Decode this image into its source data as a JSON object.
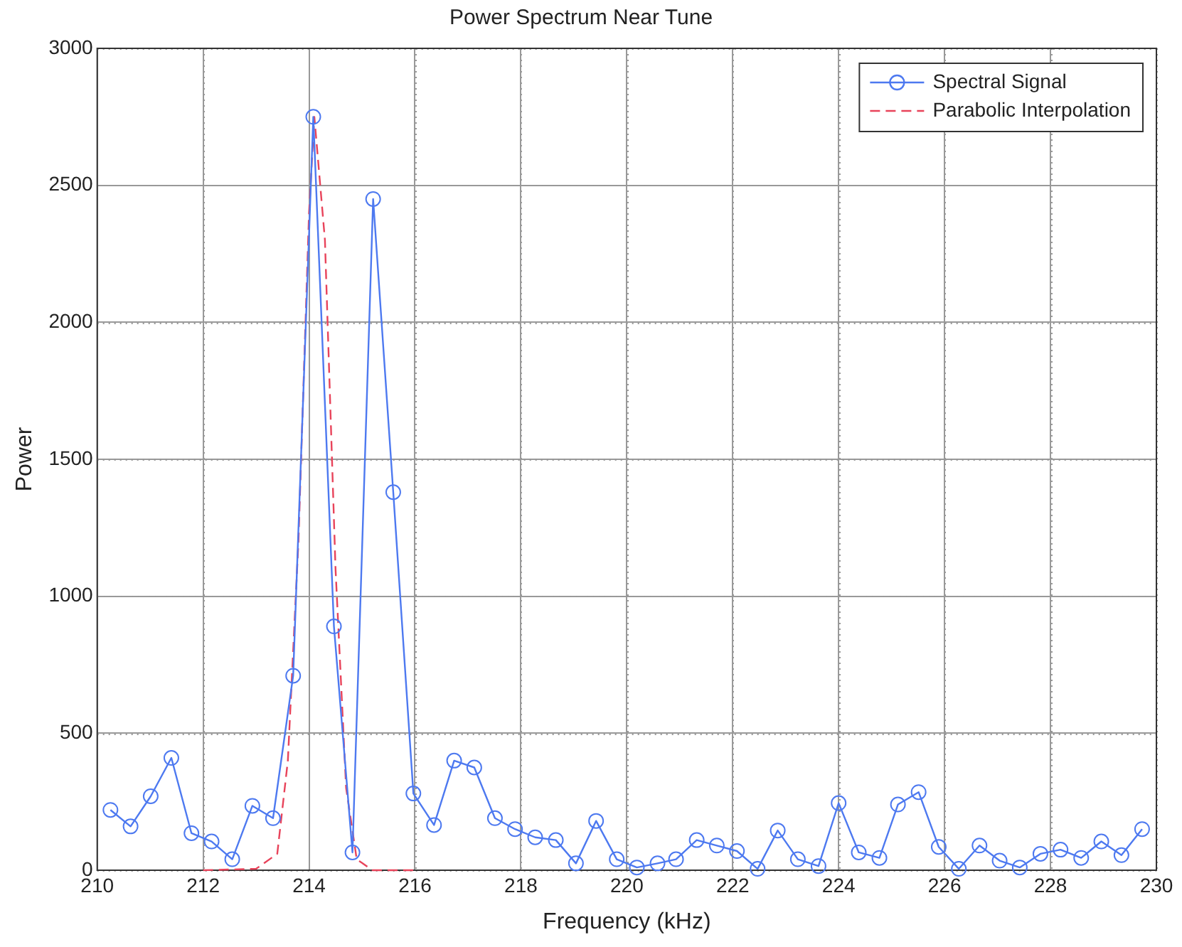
{
  "chart_data": {
    "type": "line",
    "title": "Power Spectrum Near Tune",
    "xlabel": "Frequency (kHz)",
    "ylabel": "Power",
    "xlim": [
      210,
      230
    ],
    "xticks": [
      210,
      212,
      214,
      216,
      218,
      220,
      222,
      224,
      226,
      228,
      230
    ],
    "ylim": [
      0,
      3000
    ],
    "yticks": [
      0,
      500,
      1000,
      1500,
      2000,
      2500,
      3000
    ],
    "grid": true,
    "legend": "top right",
    "series": [
      {
        "name": "Spectral Signal",
        "color": "#4d79f0",
        "marker": "circle",
        "line_style": "solid",
        "x": [
          210.25,
          210.63,
          211.01,
          211.4,
          211.78,
          212.16,
          212.55,
          212.93,
          213.32,
          213.7,
          214.08,
          214.47,
          214.82,
          215.21,
          215.59,
          215.97,
          216.36,
          216.74,
          217.12,
          217.51,
          217.89,
          218.27,
          218.66,
          219.04,
          219.42,
          219.81,
          220.19,
          220.58,
          220.93,
          221.32,
          221.7,
          222.08,
          222.47,
          222.85,
          223.23,
          223.62,
          224.0,
          224.38,
          224.77,
          225.12,
          225.51,
          225.89,
          226.27,
          226.66,
          227.04,
          227.42,
          227.81,
          228.19,
          228.58,
          228.96,
          229.34,
          229.73
        ],
        "values": [
          220,
          160,
          270,
          410,
          135,
          105,
          40,
          235,
          190,
          710,
          2750,
          890,
          65,
          2450,
          1380,
          280,
          165,
          400,
          375,
          190,
          150,
          120,
          110,
          25,
          180,
          40,
          10,
          25,
          40,
          110,
          90,
          70,
          5,
          145,
          40,
          15,
          245,
          65,
          45,
          240,
          285,
          85,
          5,
          90,
          35,
          10,
          60,
          75,
          45,
          105,
          55,
          150
        ]
      },
      {
        "name": "Parabolic Interpolation",
        "color": "#e8435a",
        "marker": "none",
        "line_style": "dashed",
        "x": [
          212.0,
          213.0,
          213.4,
          213.6,
          213.8,
          214.0,
          214.1,
          214.3,
          214.5,
          214.7,
          214.9,
          215.2,
          216.0
        ],
        "values": [
          0,
          5,
          60,
          400,
          1200,
          2400,
          2750,
          2300,
          1100,
          300,
          40,
          0,
          0
        ]
      }
    ]
  }
}
